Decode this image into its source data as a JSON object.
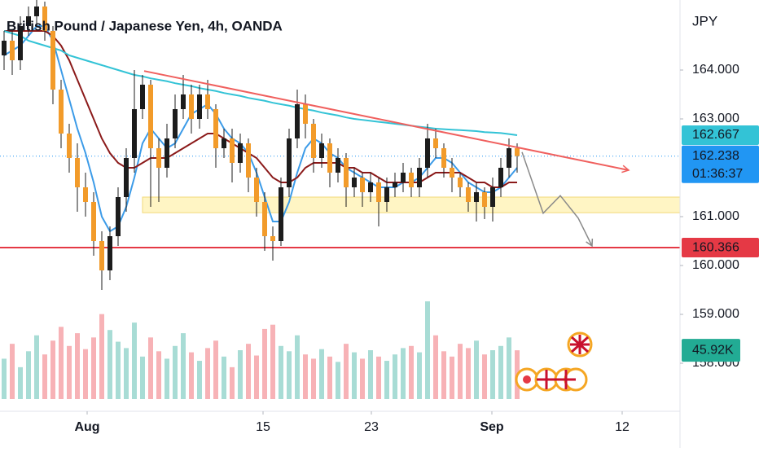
{
  "chart_data": {
    "type": "candlestick",
    "title": "British Pound / Japanese Yen, 4h, OANDA",
    "currency": "JPY",
    "open": [
      164.3,
      164.6,
      164.2,
      164.9,
      165.1,
      165.3,
      164.8,
      163.6,
      162.7,
      162.2,
      161.6,
      161.3,
      160.5,
      159.9,
      160.6,
      161.4,
      162.2,
      163.2,
      163.7,
      162.4,
      162.0,
      162.6,
      163.2,
      163.5,
      163.0,
      163.5,
      163.2,
      162.4,
      162.6,
      162.1,
      162.5,
      161.8,
      161.3,
      160.6,
      160.5,
      161.6,
      162.6,
      163.3,
      162.9,
      162.2,
      162.5,
      161.9,
      162.2,
      161.6,
      161.8,
      161.5,
      161.7,
      161.3,
      161.6,
      161.7,
      161.9,
      161.6,
      162.0,
      162.6,
      162.4,
      162.0,
      161.8,
      161.6,
      161.3,
      161.5,
      161.2,
      161.6,
      162.0,
      162.4
    ],
    "high": [
      164.8,
      164.8,
      165.1,
      165.3,
      165.45,
      165.4,
      164.9,
      163.8,
      162.9,
      162.5,
      161.9,
      161.5,
      160.7,
      160.8,
      161.6,
      162.4,
      164.0,
      163.9,
      163.8,
      162.6,
      162.9,
      163.5,
      163.9,
      163.7,
      163.7,
      163.8,
      163.3,
      162.8,
      162.8,
      162.7,
      162.6,
      162.0,
      161.5,
      160.8,
      161.8,
      162.8,
      163.6,
      163.5,
      163.0,
      162.7,
      162.6,
      162.4,
      162.3,
      162.0,
      161.9,
      161.9,
      161.8,
      161.8,
      161.9,
      162.1,
      162.0,
      162.2,
      162.9,
      162.8,
      162.5,
      162.2,
      161.9,
      161.7,
      161.7,
      161.6,
      161.8,
      162.2,
      162.6,
      162.5
    ],
    "low": [
      164.0,
      163.9,
      164.0,
      164.7,
      164.9,
      164.6,
      163.3,
      162.4,
      161.9,
      161.1,
      161.0,
      160.2,
      159.5,
      159.7,
      160.4,
      161.1,
      161.9,
      163.0,
      161.2,
      161.3,
      161.8,
      162.4,
      163.0,
      162.7,
      162.8,
      163.0,
      162.0,
      162.2,
      161.7,
      161.9,
      161.5,
      161.0,
      160.3,
      160.1,
      160.4,
      161.4,
      162.4,
      162.6,
      161.9,
      162.0,
      161.6,
      161.7,
      161.2,
      161.4,
      161.2,
      161.3,
      160.8,
      161.1,
      161.4,
      161.5,
      161.4,
      161.4,
      161.8,
      162.2,
      161.8,
      161.5,
      161.4,
      161.1,
      160.9,
      160.95,
      160.9,
      161.4,
      161.8,
      161.9
    ],
    "close": [
      164.6,
      164.2,
      164.9,
      165.1,
      165.3,
      164.8,
      163.6,
      162.7,
      162.2,
      161.6,
      161.3,
      160.5,
      159.9,
      160.6,
      161.4,
      162.2,
      163.2,
      163.7,
      162.4,
      162.0,
      162.6,
      163.2,
      163.5,
      163.0,
      163.5,
      163.2,
      162.4,
      162.6,
      162.1,
      162.5,
      161.8,
      161.3,
      160.6,
      160.5,
      161.6,
      162.6,
      163.3,
      162.9,
      162.2,
      162.5,
      161.9,
      162.2,
      161.6,
      161.8,
      161.5,
      161.7,
      161.3,
      161.6,
      161.7,
      161.9,
      161.6,
      162.0,
      162.6,
      162.4,
      162.0,
      161.8,
      161.6,
      161.3,
      161.5,
      161.2,
      161.6,
      162.0,
      162.4,
      162.24
    ],
    "colors": {
      "up": "#1c1c1c",
      "down": "#f29b2a",
      "wick": "#1c1c1c"
    },
    "volume": {
      "values": [
        38000,
        52000,
        30000,
        45000,
        60000,
        42000,
        55000,
        68000,
        50000,
        62000,
        47000,
        58000,
        80000,
        65000,
        54000,
        48000,
        72000,
        40000,
        58000,
        45000,
        38000,
        50000,
        62000,
        44000,
        36000,
        48000,
        55000,
        40000,
        30000,
        46000,
        52000,
        41000,
        66000,
        70000,
        50000,
        45000,
        60000,
        42000,
        38000,
        47000,
        40000,
        35000,
        52000,
        44000,
        38000,
        46000,
        40000,
        36000,
        42000,
        48000,
        50000,
        44000,
        92000,
        60000,
        45000,
        40000,
        52000,
        48000,
        55000,
        42000,
        46000,
        50000,
        58000,
        45920
      ],
      "ylim": [
        0,
        92000
      ],
      "up_color": "#a8dcd5",
      "down_color": "#f7b2b6",
      "last": {
        "value": 45920,
        "label": "45.92K"
      },
      "tag_color": "#22ab94"
    },
    "moving_averages": [
      {
        "color": "#3c9be8",
        "values": [
          164.3,
          164.4,
          164.5,
          164.7,
          164.9,
          164.9,
          164.6,
          164.0,
          163.4,
          162.8,
          162.3,
          161.7,
          161.0,
          160.7,
          160.8,
          161.2,
          161.8,
          162.5,
          162.8,
          162.6,
          162.4,
          162.5,
          162.8,
          163.1,
          163.2,
          163.3,
          163.1,
          162.8,
          162.6,
          162.5,
          162.3,
          161.9,
          161.4,
          160.9,
          160.9,
          161.3,
          161.9,
          162.4,
          162.6,
          162.5,
          162.3,
          162.2,
          162.0,
          161.9,
          161.8,
          161.7,
          161.6,
          161.6,
          161.6,
          161.7,
          161.7,
          161.8,
          162.0,
          162.2,
          162.2,
          162.1,
          161.9,
          161.7,
          161.6,
          161.5,
          161.5,
          161.6,
          161.8,
          162.0
        ]
      },
      {
        "color": "#8b1a1a",
        "values": [
          164.8,
          164.8,
          164.8,
          164.8,
          164.8,
          164.8,
          164.7,
          164.5,
          164.2,
          163.8,
          163.4,
          163.0,
          162.6,
          162.3,
          162.1,
          162.0,
          162.0,
          162.1,
          162.2,
          162.2,
          162.2,
          162.3,
          162.4,
          162.5,
          162.6,
          162.7,
          162.7,
          162.6,
          162.5,
          162.4,
          162.3,
          162.2,
          162.0,
          161.8,
          161.7,
          161.7,
          161.8,
          162.0,
          162.1,
          162.1,
          162.1,
          162.1,
          162.0,
          162.0,
          161.9,
          161.9,
          161.8,
          161.7,
          161.7,
          161.7,
          161.7,
          161.7,
          161.8,
          161.9,
          161.9,
          161.9,
          161.9,
          161.8,
          161.7,
          161.7,
          161.6,
          161.6,
          161.7,
          161.7
        ]
      },
      {
        "color": "#33c3d6",
        "values": [
          164.8,
          164.75,
          164.7,
          164.6,
          164.55,
          164.5,
          164.45,
          164.4,
          164.3,
          164.25,
          164.2,
          164.15,
          164.1,
          164.05,
          164.0,
          163.95,
          163.9,
          163.87,
          163.83,
          163.8,
          163.77,
          163.73,
          163.7,
          163.67,
          163.63,
          163.6,
          163.57,
          163.53,
          163.5,
          163.47,
          163.43,
          163.4,
          163.37,
          163.33,
          163.3,
          163.27,
          163.23,
          163.2,
          163.17,
          163.13,
          163.1,
          163.07,
          163.03,
          163.0,
          162.98,
          162.96,
          162.94,
          162.92,
          162.9,
          162.88,
          162.86,
          162.84,
          162.82,
          162.8,
          162.79,
          162.78,
          162.77,
          162.76,
          162.75,
          162.73,
          162.72,
          162.71,
          162.69,
          162.667
        ]
      }
    ],
    "xlim": [
      -0.5,
      83
    ],
    "xticks": [
      {
        "value": 10.2,
        "label": "Aug"
      },
      {
        "value": 31.8,
        "label": "15"
      },
      {
        "value": 45.1,
        "label": "23"
      },
      {
        "value": 59.9,
        "label": "Sep"
      },
      {
        "value": 75.9,
        "label": "12"
      }
    ],
    "ylim": [
      157.017,
      165.433
    ],
    "yticks": [
      {
        "value": 158,
        "label": "158.000"
      },
      {
        "value": 159,
        "label": "159.000"
      },
      {
        "value": 160,
        "label": "160.000"
      },
      {
        "value": 161,
        "label": "161.000"
      },
      {
        "value": 163,
        "label": "163.000"
      },
      {
        "value": 164,
        "label": "164.000"
      }
    ],
    "last_price": {
      "value": 162.238,
      "label": "162.238",
      "countdown": "01:36:37",
      "color": "#2196f3"
    },
    "ma_tag": {
      "value": 162.667,
      "label": "162.667",
      "color": "#33c3d6"
    },
    "support_line": {
      "value": 160.366,
      "label": "160.366",
      "color": "#e53945"
    },
    "zone": {
      "from": 17,
      "low": 161.08,
      "high": 161.4,
      "color": "#fff5c4",
      "border": "#f2d97a"
    },
    "trendline": {
      "x": [
        17.2,
        76.7
      ],
      "y": [
        163.98,
        161.95
      ],
      "color": "#f0605e"
    },
    "projection": {
      "x": [
        63.6,
        66.2,
        68.3,
        70.5,
        72.2
      ],
      "y": [
        162.32,
        161.07,
        161.43,
        160.97,
        160.4
      ],
      "color": "#8a8a8a"
    }
  }
}
